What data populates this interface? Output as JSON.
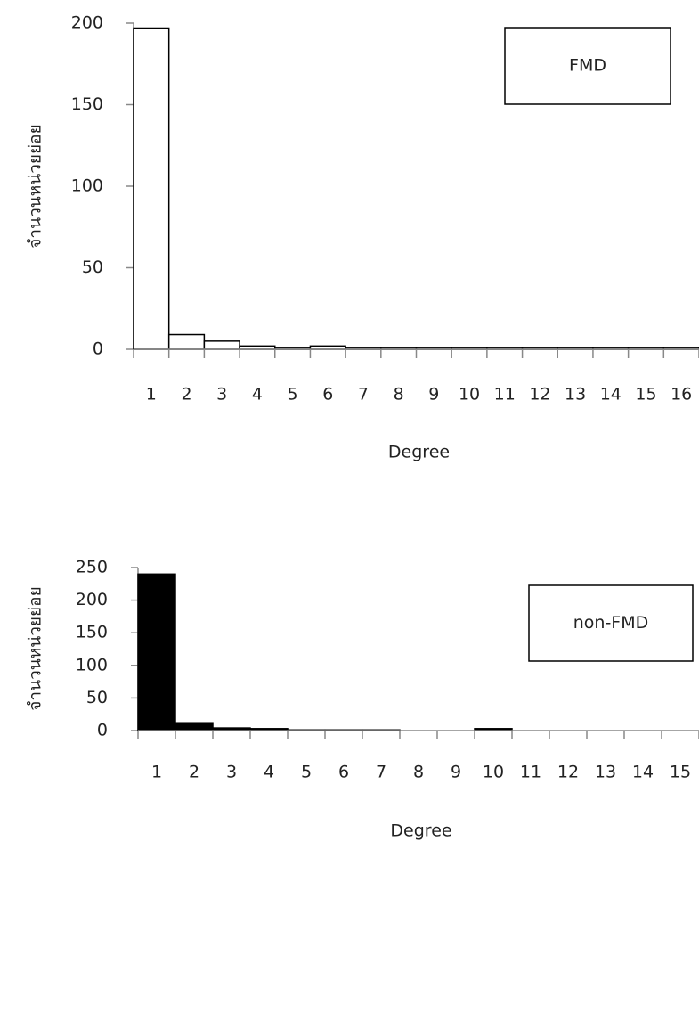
{
  "chart_data": [
    {
      "type": "bar",
      "x_label": "Degree",
      "y_label": "จำนวนหน่วยย่อย",
      "categories": [
        "1",
        "2",
        "3",
        "4",
        "5",
        "6",
        "7",
        "8",
        "9",
        "10",
        "11",
        "12",
        "13",
        "14",
        "15",
        "16"
      ],
      "series": [
        {
          "name": "FMD",
          "color": "#ffffff",
          "edge": "#000000",
          "values": [
            197,
            9,
            5,
            2,
            1,
            2,
            1,
            1,
            1,
            1,
            1,
            1,
            1,
            1,
            1,
            1
          ]
        }
      ],
      "ylim": [
        0,
        200
      ],
      "yticks": [
        0,
        50,
        100,
        150,
        200
      ],
      "legend": "upper right"
    },
    {
      "type": "bar",
      "x_label": "Degree",
      "y_label": "จำนวนหน่วยย่อย",
      "categories": [
        "1",
        "2",
        "3",
        "4",
        "5",
        "6",
        "7",
        "8",
        "9",
        "10",
        "11",
        "12",
        "13",
        "14",
        "15"
      ],
      "series": [
        {
          "name": "non-FMD",
          "color": "#000000",
          "edge": "#000000",
          "values": [
            240,
            12,
            4,
            3,
            1,
            1,
            1,
            0,
            0,
            3,
            0,
            0,
            0,
            0,
            0
          ]
        }
      ],
      "ylim": [
        0,
        250
      ],
      "yticks": [
        0,
        50,
        100,
        150,
        200,
        250
      ],
      "legend": "upper right"
    }
  ]
}
